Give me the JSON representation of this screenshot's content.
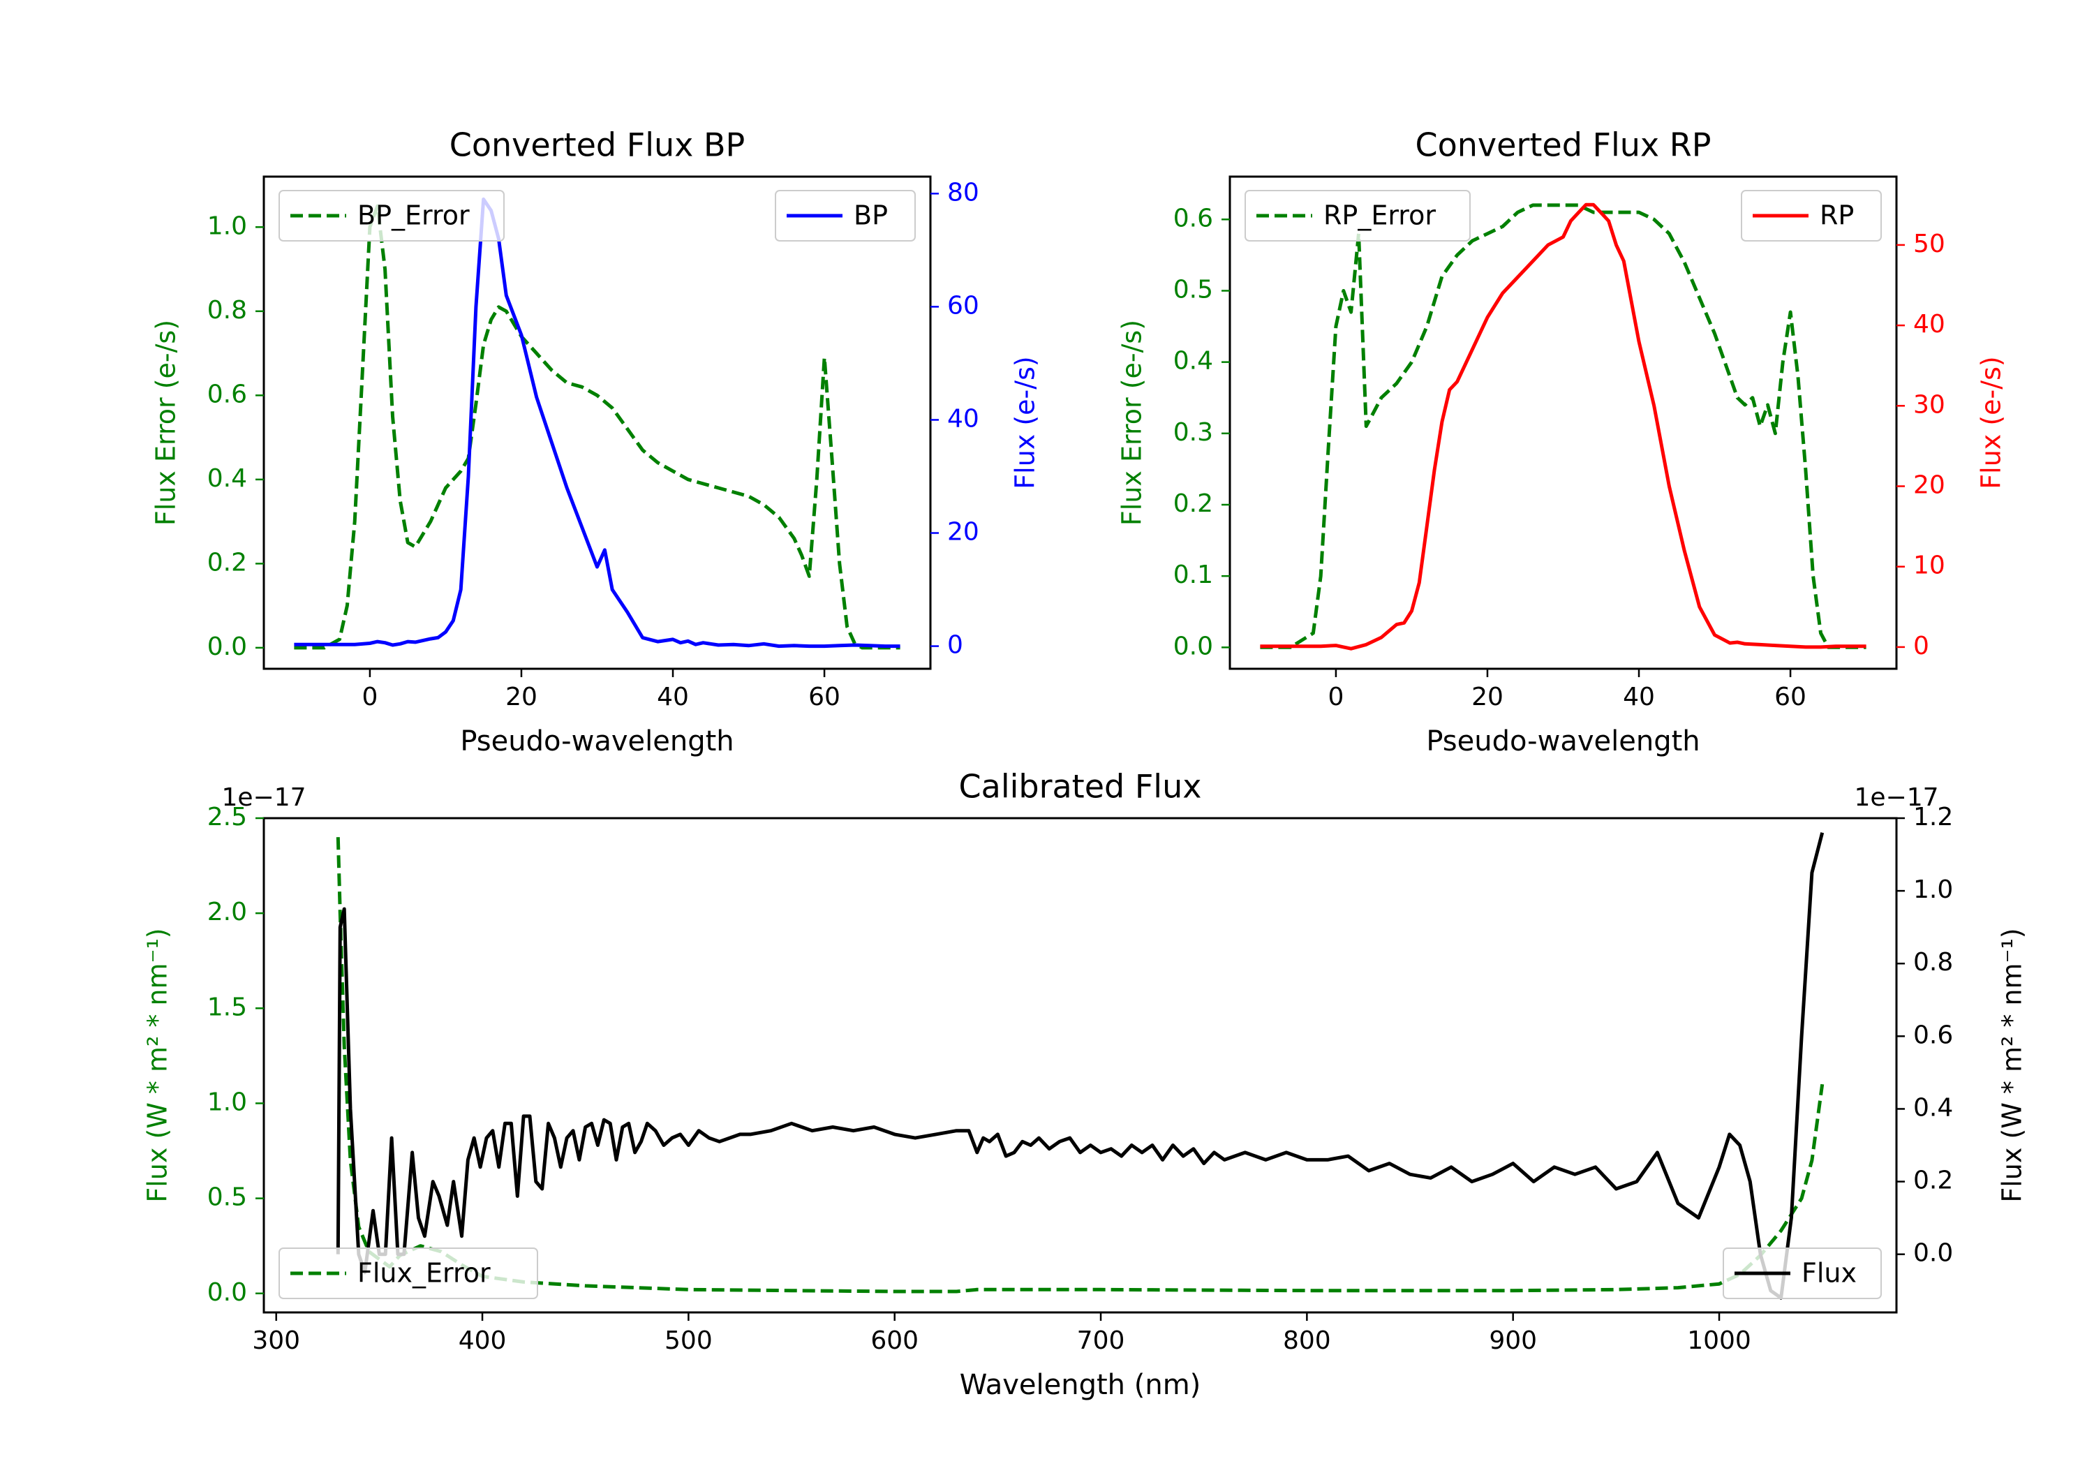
{
  "colors": {
    "error": "#008000",
    "bp": "#0000ff",
    "rp": "#ff0000",
    "calibrated": "#000000",
    "frame": "#000000"
  },
  "chart_data": [
    {
      "id": "bp",
      "type": "line",
      "title": "Converted Flux BP",
      "xlabel": "Pseudo-wavelength",
      "ylabel_left": "Flux Error (e-/s)",
      "ylabel_right": "Flux (e-/s)",
      "xlim": [
        -14,
        74
      ],
      "ylim_left": [
        -0.05,
        1.12
      ],
      "ylim_right": [
        -4,
        83
      ],
      "xticks": [
        0,
        20,
        40,
        60
      ],
      "yticks_left": [
        0.0,
        0.2,
        0.4,
        0.6,
        0.8,
        1.0
      ],
      "ytick_labels_left": [
        "0.0",
        "0.2",
        "0.4",
        "0.6",
        "0.8",
        "1.0"
      ],
      "yticks_right": [
        0,
        20,
        40,
        60,
        80
      ],
      "ytick_labels_right": [
        "0",
        "20",
        "40",
        "60",
        "80"
      ],
      "legend_left": "upper-left",
      "legend_right": "upper-right",
      "series": [
        {
          "name": "BP_Error",
          "axis": "left",
          "style": "dashed",
          "x": [
            -10,
            -6,
            -4,
            -3,
            -2,
            -1,
            0,
            1,
            2,
            3,
            4,
            5,
            6,
            8,
            10,
            12,
            13,
            14,
            15,
            16,
            17,
            18,
            19,
            20,
            22,
            24,
            26,
            28,
            30,
            32,
            34,
            36,
            38,
            40,
            42,
            44,
            46,
            48,
            50,
            52,
            54,
            56,
            57,
            58,
            59,
            60,
            61,
            62,
            63,
            64,
            65,
            66,
            68,
            70
          ],
          "y": [
            0.0,
            0.0,
            0.02,
            0.1,
            0.3,
            0.65,
            1.0,
            1.05,
            0.9,
            0.55,
            0.35,
            0.25,
            0.24,
            0.3,
            0.38,
            0.42,
            0.45,
            0.58,
            0.72,
            0.78,
            0.81,
            0.8,
            0.77,
            0.74,
            0.7,
            0.66,
            0.63,
            0.62,
            0.6,
            0.57,
            0.52,
            0.47,
            0.44,
            0.42,
            0.4,
            0.39,
            0.38,
            0.37,
            0.36,
            0.34,
            0.31,
            0.26,
            0.22,
            0.17,
            0.4,
            0.69,
            0.45,
            0.2,
            0.05,
            0.01,
            0.0,
            0.0,
            0.0,
            0.0
          ]
        },
        {
          "name": "BP",
          "axis": "right",
          "style": "solid",
          "x": [
            -10,
            -6,
            -2,
            0,
            1,
            2,
            3,
            4,
            5,
            6,
            8,
            9,
            10,
            11,
            12,
            13,
            14,
            15,
            16,
            17,
            18,
            20,
            22,
            24,
            26,
            28,
            30,
            31,
            32,
            34,
            36,
            38,
            40,
            41,
            42,
            43,
            44,
            46,
            48,
            50,
            52,
            54,
            56,
            58,
            60,
            62,
            64,
            66,
            68,
            70
          ],
          "y": [
            0.3,
            0.3,
            0.3,
            0.5,
            0.8,
            0.6,
            0.2,
            0.4,
            0.8,
            0.7,
            1.3,
            1.5,
            2.5,
            4.5,
            10,
            30,
            60,
            79,
            77,
            72,
            62,
            55,
            44,
            36,
            28,
            21,
            14,
            17,
            10,
            6,
            1.5,
            0.8,
            1.2,
            0.6,
            0.9,
            0.3,
            0.6,
            0.2,
            0.3,
            0.1,
            0.4,
            0.0,
            0.1,
            0.0,
            0.0,
            0.1,
            0.2,
            0.1,
            0.0,
            0.0
          ]
        }
      ]
    },
    {
      "id": "rp",
      "type": "line",
      "title": "Converted Flux RP",
      "xlabel": "Pseudo-wavelength",
      "ylabel_left": "Flux Error (e-/s)",
      "ylabel_right": "Flux (e-/s)",
      "xlim": [
        -14,
        74
      ],
      "ylim_left": [
        -0.03,
        0.66
      ],
      "ylim_right": [
        -2.7,
        58.5
      ],
      "xticks": [
        0,
        20,
        40,
        60
      ],
      "yticks_left": [
        0.0,
        0.1,
        0.2,
        0.3,
        0.4,
        0.5,
        0.6
      ],
      "ytick_labels_left": [
        "0.0",
        "0.1",
        "0.2",
        "0.3",
        "0.4",
        "0.5",
        "0.6"
      ],
      "yticks_right": [
        0,
        10,
        20,
        30,
        40,
        50
      ],
      "ytick_labels_right": [
        "0",
        "10",
        "20",
        "30",
        "40",
        "50"
      ],
      "legend_left": "upper-left",
      "legend_right": "upper-right",
      "series": [
        {
          "name": "RP_Error",
          "axis": "left",
          "style": "dashed",
          "x": [
            -10,
            -6,
            -3,
            -2,
            -1,
            0,
            1,
            2,
            3,
            4,
            5,
            6,
            8,
            10,
            12,
            14,
            16,
            18,
            20,
            22,
            24,
            26,
            28,
            30,
            32,
            34,
            36,
            38,
            40,
            42,
            44,
            46,
            48,
            50,
            52,
            53,
            54,
            55,
            56,
            57,
            58,
            59,
            60,
            61,
            62,
            63,
            64,
            65,
            66,
            68,
            70
          ],
          "y": [
            0.0,
            0.0,
            0.02,
            0.1,
            0.28,
            0.45,
            0.5,
            0.47,
            0.58,
            0.31,
            0.33,
            0.35,
            0.37,
            0.4,
            0.45,
            0.52,
            0.55,
            0.57,
            0.58,
            0.59,
            0.61,
            0.62,
            0.62,
            0.62,
            0.62,
            0.61,
            0.61,
            0.61,
            0.61,
            0.6,
            0.58,
            0.54,
            0.49,
            0.44,
            0.38,
            0.35,
            0.34,
            0.35,
            0.31,
            0.34,
            0.3,
            0.4,
            0.47,
            0.38,
            0.25,
            0.1,
            0.02,
            0.0,
            0.0,
            0.0,
            0.0
          ]
        },
        {
          "name": "RP",
          "axis": "right",
          "style": "solid",
          "x": [
            -10,
            -6,
            -2,
            0,
            1,
            2,
            4,
            6,
            8,
            9,
            10,
            11,
            12,
            13,
            14,
            15,
            16,
            18,
            20,
            22,
            24,
            26,
            28,
            30,
            31,
            32,
            33,
            34,
            35,
            36,
            37,
            38,
            40,
            42,
            44,
            46,
            48,
            50,
            52,
            53,
            54,
            56,
            58,
            60,
            62,
            64,
            66,
            68,
            70
          ],
          "y": [
            0.1,
            0.1,
            0.1,
            0.2,
            0.0,
            -0.2,
            0.3,
            1.2,
            2.8,
            3.0,
            4.5,
            8,
            15,
            22,
            28,
            32,
            33,
            37,
            41,
            44,
            46,
            48,
            50,
            51,
            53,
            54,
            55,
            55,
            54,
            53,
            50,
            48,
            38,
            30,
            20,
            12,
            5,
            1.5,
            0.5,
            0.6,
            0.4,
            0.3,
            0.2,
            0.1,
            0.0,
            0.0,
            0.1,
            0.1,
            0.1
          ]
        }
      ]
    },
    {
      "id": "calibrated",
      "type": "line",
      "title": "Calibrated Flux",
      "xlabel": "Wavelength (nm)",
      "ylabel_left": "Flux (W * m² * nm⁻¹)",
      "ylabel_right": "Flux (W * m² * nm⁻¹)",
      "offset_left": "1e−17",
      "offset_right": "1e−17",
      "xlim": [
        294,
        1086
      ],
      "ylim_left": [
        -0.1,
        2.5
      ],
      "ylim_right": [
        -0.16,
        1.2
      ],
      "xticks": [
        300,
        400,
        500,
        600,
        700,
        800,
        900,
        1000
      ],
      "yticks_left": [
        0.0,
        0.5,
        1.0,
        1.5,
        2.0,
        2.5
      ],
      "ytick_labels_left": [
        "0.0",
        "0.5",
        "1.0",
        "1.5",
        "2.0",
        "2.5"
      ],
      "yticks_right": [
        0.0,
        0.2,
        0.4,
        0.6,
        0.8,
        1.0,
        1.2
      ],
      "ytick_labels_right": [
        "0.0",
        "0.2",
        "0.4",
        "0.6",
        "0.8",
        "1.0",
        "1.2"
      ],
      "legend_left": "lower-left",
      "legend_right": "lower-right",
      "series": [
        {
          "name": "Flux_Error",
          "axis": "left",
          "style": "dashed",
          "x": [
            330,
            331,
            333,
            336,
            340,
            345,
            350,
            355,
            360,
            370,
            380,
            390,
            400,
            420,
            450,
            500,
            550,
            600,
            630,
            640,
            700,
            800,
            900,
            950,
            980,
            1000,
            1010,
            1020,
            1030,
            1040,
            1045,
            1050
          ],
          "y": [
            2.4,
            2.0,
            1.3,
            0.7,
            0.35,
            0.22,
            0.18,
            0.14,
            0.2,
            0.25,
            0.22,
            0.15,
            0.09,
            0.06,
            0.04,
            0.02,
            0.015,
            0.01,
            0.01,
            0.02,
            0.02,
            0.015,
            0.015,
            0.02,
            0.03,
            0.05,
            0.1,
            0.2,
            0.33,
            0.5,
            0.7,
            1.1
          ]
        },
        {
          "name": "Flux",
          "axis": "right",
          "style": "solid",
          "x": [
            330,
            331,
            333,
            336,
            340,
            343,
            347,
            350,
            353,
            356,
            359,
            362,
            366,
            369,
            372,
            376,
            379,
            383,
            386,
            390,
            393,
            396,
            399,
            402,
            405,
            408,
            411,
            414,
            417,
            420,
            423,
            426,
            429,
            432,
            435,
            438,
            441,
            444,
            447,
            450,
            453,
            456,
            459,
            462,
            465,
            468,
            471,
            474,
            477,
            480,
            484,
            488,
            492,
            496,
            500,
            505,
            510,
            515,
            520,
            525,
            530,
            540,
            550,
            560,
            570,
            580,
            590,
            600,
            610,
            620,
            630,
            636,
            640,
            643,
            646,
            650,
            654,
            658,
            662,
            666,
            670,
            675,
            680,
            685,
            690,
            695,
            700,
            705,
            710,
            715,
            720,
            725,
            730,
            735,
            740,
            745,
            750,
            755,
            760,
            765,
            770,
            780,
            790,
            800,
            810,
            820,
            830,
            840,
            850,
            860,
            870,
            880,
            890,
            900,
            910,
            920,
            930,
            940,
            950,
            960,
            970,
            980,
            990,
            1000,
            1005,
            1010,
            1015,
            1020,
            1025,
            1030,
            1035,
            1040,
            1045,
            1050
          ],
          "y": [
            0.0,
            0.9,
            0.95,
            0.4,
            0.0,
            -0.05,
            0.12,
            0.0,
            0.0,
            0.32,
            0.0,
            0.0,
            0.28,
            0.1,
            0.05,
            0.2,
            0.16,
            0.08,
            0.2,
            0.05,
            0.26,
            0.32,
            0.24,
            0.32,
            0.34,
            0.24,
            0.36,
            0.36,
            0.16,
            0.38,
            0.38,
            0.2,
            0.18,
            0.36,
            0.32,
            0.24,
            0.32,
            0.34,
            0.26,
            0.35,
            0.36,
            0.3,
            0.37,
            0.36,
            0.26,
            0.35,
            0.36,
            0.28,
            0.31,
            0.36,
            0.34,
            0.3,
            0.32,
            0.33,
            0.3,
            0.34,
            0.32,
            0.31,
            0.32,
            0.33,
            0.33,
            0.34,
            0.36,
            0.34,
            0.35,
            0.34,
            0.35,
            0.33,
            0.32,
            0.33,
            0.34,
            0.34,
            0.28,
            0.32,
            0.31,
            0.33,
            0.27,
            0.28,
            0.31,
            0.3,
            0.32,
            0.29,
            0.31,
            0.32,
            0.28,
            0.3,
            0.28,
            0.29,
            0.27,
            0.3,
            0.28,
            0.3,
            0.26,
            0.3,
            0.27,
            0.29,
            0.25,
            0.28,
            0.26,
            0.27,
            0.28,
            0.26,
            0.28,
            0.26,
            0.26,
            0.27,
            0.23,
            0.25,
            0.22,
            0.21,
            0.24,
            0.2,
            0.22,
            0.25,
            0.2,
            0.24,
            0.22,
            0.24,
            0.18,
            0.2,
            0.28,
            0.14,
            0.1,
            0.24,
            0.33,
            0.3,
            0.2,
            0.0,
            -0.1,
            -0.12,
            0.1,
            0.6,
            1.05,
            1.16
          ]
        }
      ]
    }
  ]
}
